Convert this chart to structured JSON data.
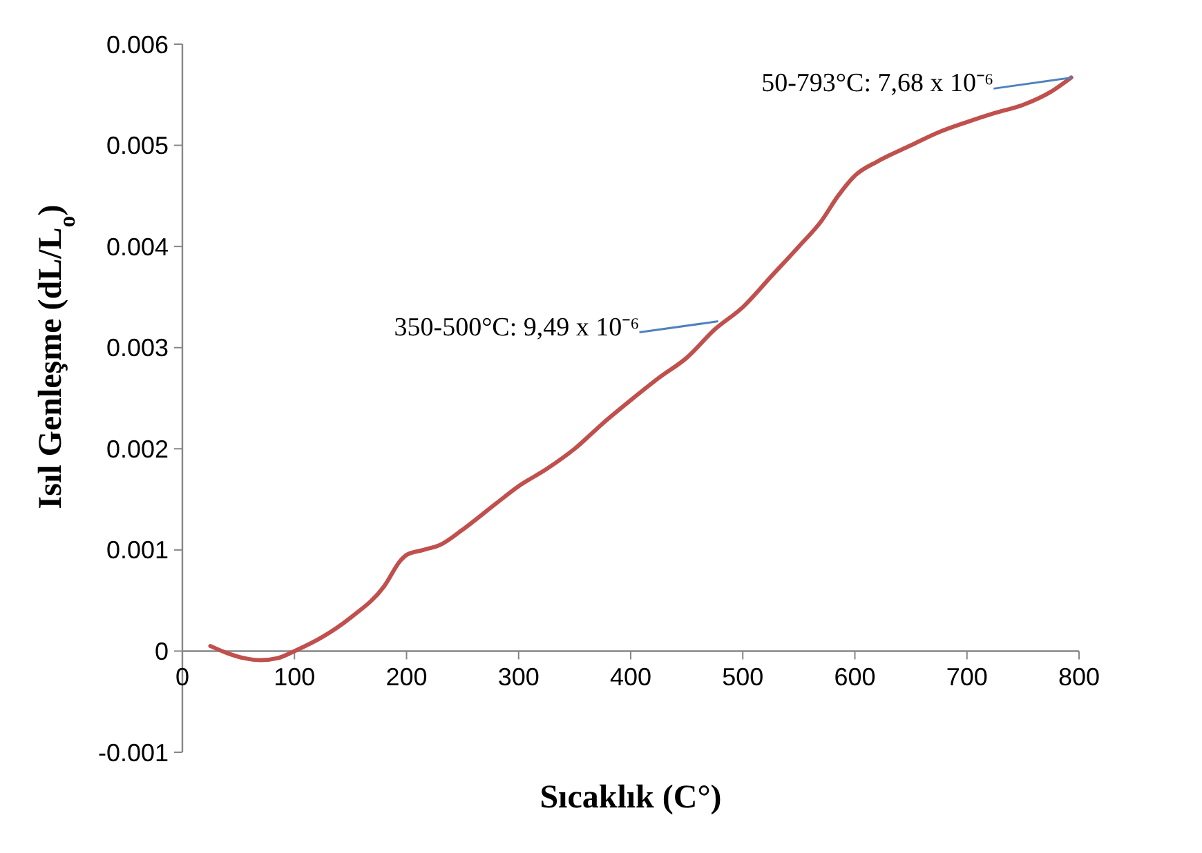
{
  "chart_data": {
    "type": "line",
    "xlabel": "Sıcaklık (C°)",
    "ylabel": "Isıl Genleşme (dL/L$_{o}$)",
    "xlim": [
      0,
      800
    ],
    "xticks": [
      0,
      100,
      200,
      300,
      400,
      500,
      600,
      700,
      800
    ],
    "ylim": [
      -0.001,
      0.006
    ],
    "yticks": [
      -0.001,
      0,
      0.001,
      0.002,
      0.003,
      0.004,
      0.005,
      0.006
    ],
    "marker": "none",
    "line_style": "solid",
    "series": [
      {
        "color": "#c0504d",
        "x": [
          25,
          40,
          55,
          70,
          85,
          100,
          125,
          150,
          180,
          195,
          200,
          215,
          230,
          250,
          280,
          300,
          325,
          350,
          375,
          400,
          425,
          450,
          475,
          500,
          525,
          550,
          570,
          585,
          600,
          620,
          650,
          675,
          700,
          725,
          750,
          775,
          793
        ],
        "values": [
          5e-05,
          -2e-05,
          -7e-05,
          -9e-05,
          -7e-05,
          0,
          0.00014,
          0.00033,
          0.00064,
          0.0009,
          0.00095,
          0.001,
          0.00105,
          0.0012,
          0.00146,
          0.00163,
          0.0018,
          0.002,
          0.00225,
          0.00248,
          0.0027,
          0.0029,
          0.00318,
          0.0034,
          0.0037,
          0.004,
          0.00425,
          0.0045,
          0.0047,
          0.00484,
          0.005,
          0.00513,
          0.00523,
          0.00532,
          0.0054,
          0.00553,
          0.00567
        ]
      }
    ],
    "annotations": [
      {
        "text": "350-500°C:  9,49 x 10⁻⁶",
        "x": 478,
        "y": 0.00326
      },
      {
        "text": "50-793°C:  7,68 x 10⁻⁶",
        "x": 794,
        "y": 0.00567
      }
    ]
  }
}
